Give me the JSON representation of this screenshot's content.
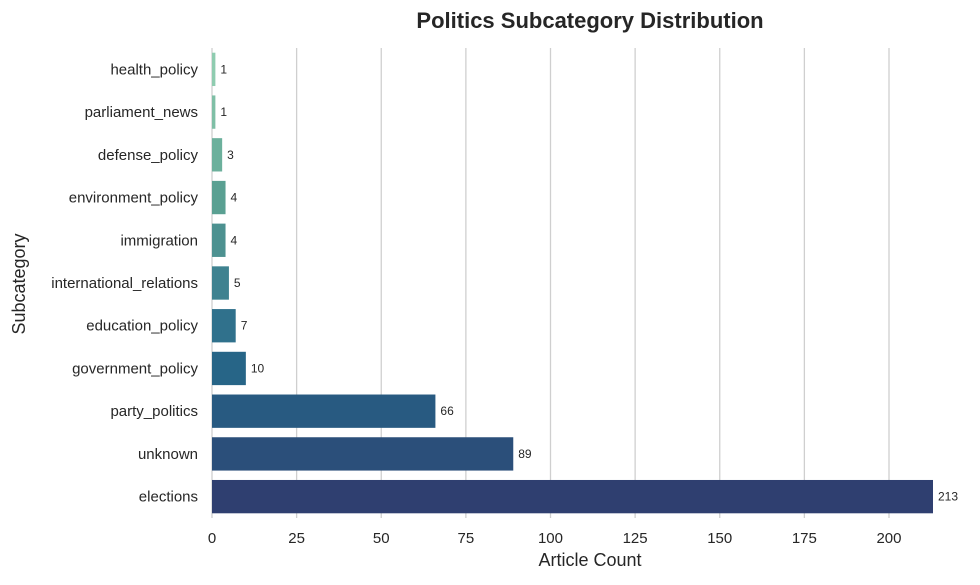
{
  "chart_data": {
    "type": "bar",
    "orientation": "horizontal",
    "title": "Politics Subcategory Distribution",
    "xlabel": "Article Count",
    "ylabel": "Subcategory",
    "xlim": [
      0,
      213
    ],
    "xticks": [
      0,
      25,
      50,
      75,
      100,
      125,
      150,
      175,
      200
    ],
    "grid": "vertical",
    "categories": [
      "health_policy",
      "parliament_news",
      "defense_policy",
      "environment_policy",
      "immigration",
      "international_relations",
      "education_policy",
      "government_policy",
      "party_politics",
      "unknown",
      "elections"
    ],
    "values": [
      1,
      1,
      3,
      4,
      4,
      5,
      7,
      10,
      66,
      89,
      213
    ],
    "colors": [
      "#8fccb0",
      "#7fbfa6",
      "#6cb09c",
      "#5aa092",
      "#4d9190",
      "#3f8290",
      "#30718c",
      "#276587",
      "#285a81",
      "#2b4f7a",
      "#2f3f70"
    ]
  }
}
